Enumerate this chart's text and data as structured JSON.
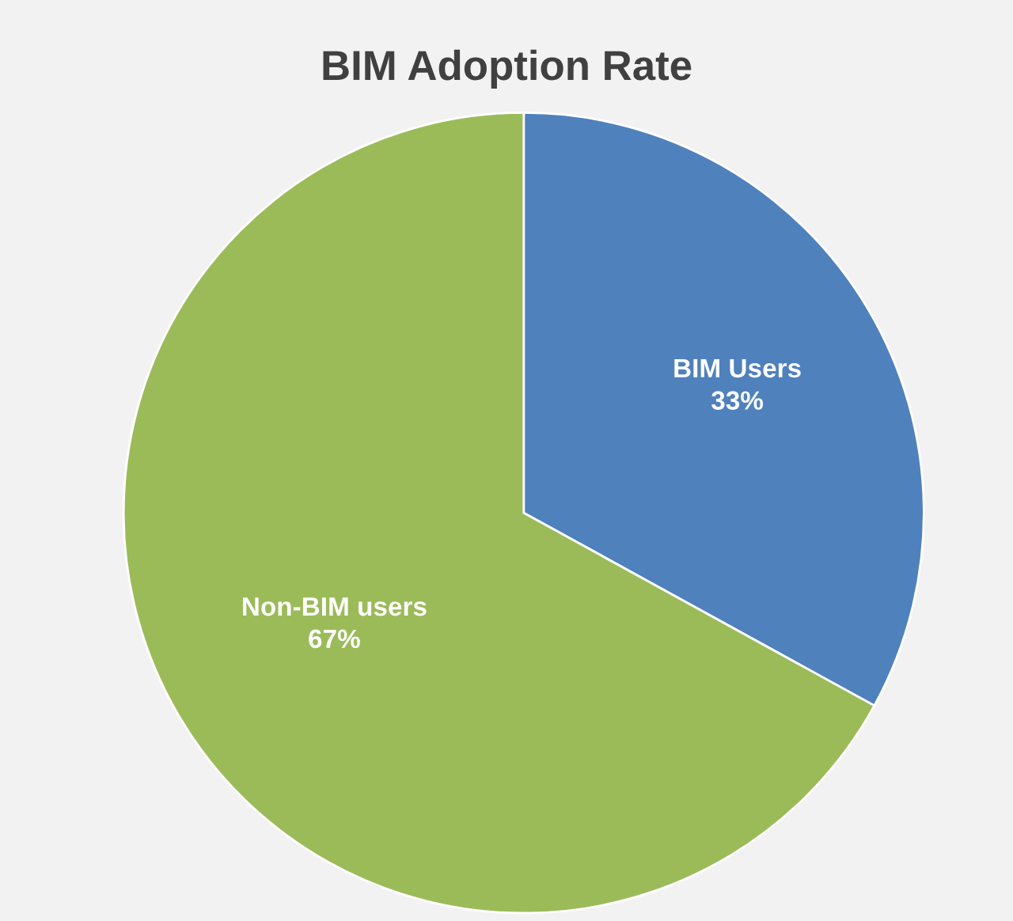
{
  "chart_data": {
    "type": "pie",
    "title": "BIM Adoption Rate",
    "categories": [
      "BIM Users",
      "Non-BIM users"
    ],
    "values": [
      33,
      67
    ],
    "value_labels": [
      "33%",
      "67%"
    ],
    "colors": [
      "#4f81bd",
      "#9bbb59"
    ],
    "legend": false
  }
}
